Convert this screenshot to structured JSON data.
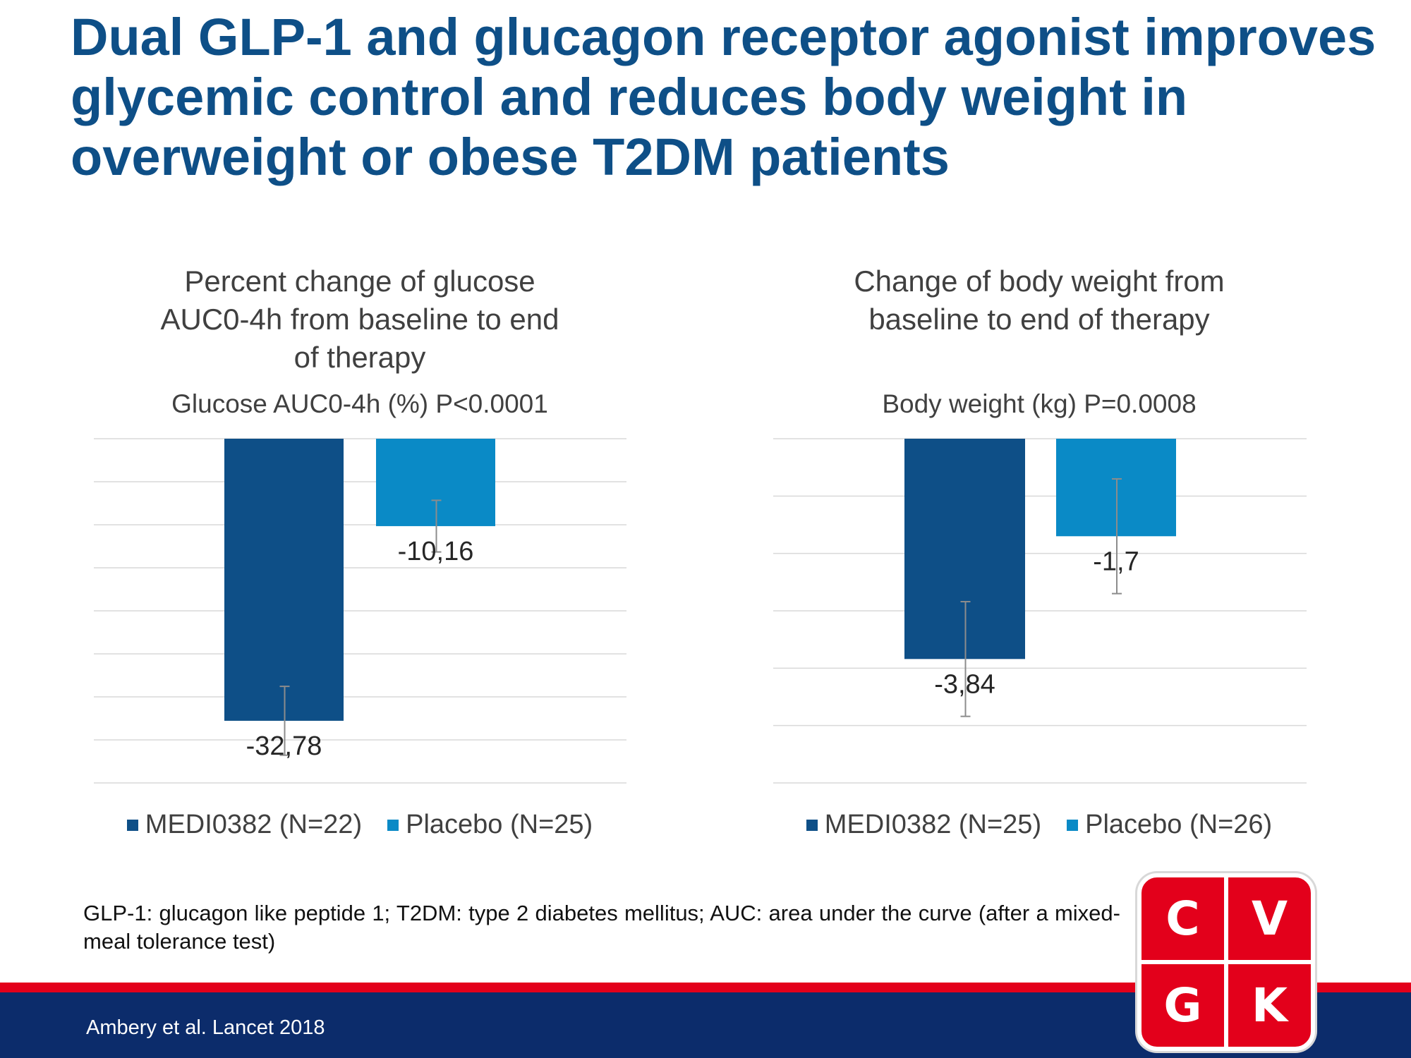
{
  "title": "Dual GLP-1 and glucagon receptor agonist improves glycemic control and reduces body weight in overweight or obese T2DM patients",
  "colors": {
    "medi": "#0e4f87",
    "placebo": "#0a8ac6",
    "title": "#0e4f87",
    "brand_red": "#e3001b",
    "footer_blue": "#0c2c6b"
  },
  "chart_data": [
    {
      "type": "bar",
      "title": "Percent change of glucose AUC0-4h from baseline to end of therapy",
      "subtitle": "Glucose AUC0-4h (%) P<0.0001",
      "ylim": [
        -40,
        0
      ],
      "grid": true,
      "legend_position": "bottom",
      "series": [
        {
          "name": "MEDI0382 (N=22)",
          "value": -32.78,
          "label": "-32,78",
          "error": 4.0,
          "color": "#0e4f87"
        },
        {
          "name": "Placebo (N=25)",
          "value": -10.16,
          "label": "-10,16",
          "error": 3.0,
          "color": "#0a8ac6"
        }
      ]
    },
    {
      "type": "bar",
      "title": "Change of body weight from baseline to end of therapy",
      "subtitle": "Body weight (kg) P=0.0008",
      "ylim": [
        -6,
        0
      ],
      "grid": true,
      "legend_position": "bottom",
      "series": [
        {
          "name": "MEDI0382 (N=25)",
          "value": -3.84,
          "label": "-3,84",
          "error": 1.0,
          "color": "#0e4f87"
        },
        {
          "name": "Placebo (N=26)",
          "value": -1.7,
          "label": "-1,7",
          "error": 1.0,
          "color": "#0a8ac6"
        }
      ]
    }
  ],
  "chart_headings": [
    [
      "Percent change  of glucose",
      "AUC0-4h  from baseline  to end",
      "of therapy"
    ],
    [
      "Change  of body weight  from",
      "baseline  to end  of therapy"
    ]
  ],
  "footnote": "GLP-1: glucagon like peptide 1; T2DM: type 2 diabetes mellitus; AUC: area under the curve (after a mixed-meal tolerance test)",
  "source": "Ambery et al. Lancet 2018",
  "logo": {
    "letters": [
      "C",
      "V",
      "G",
      "K"
    ]
  }
}
